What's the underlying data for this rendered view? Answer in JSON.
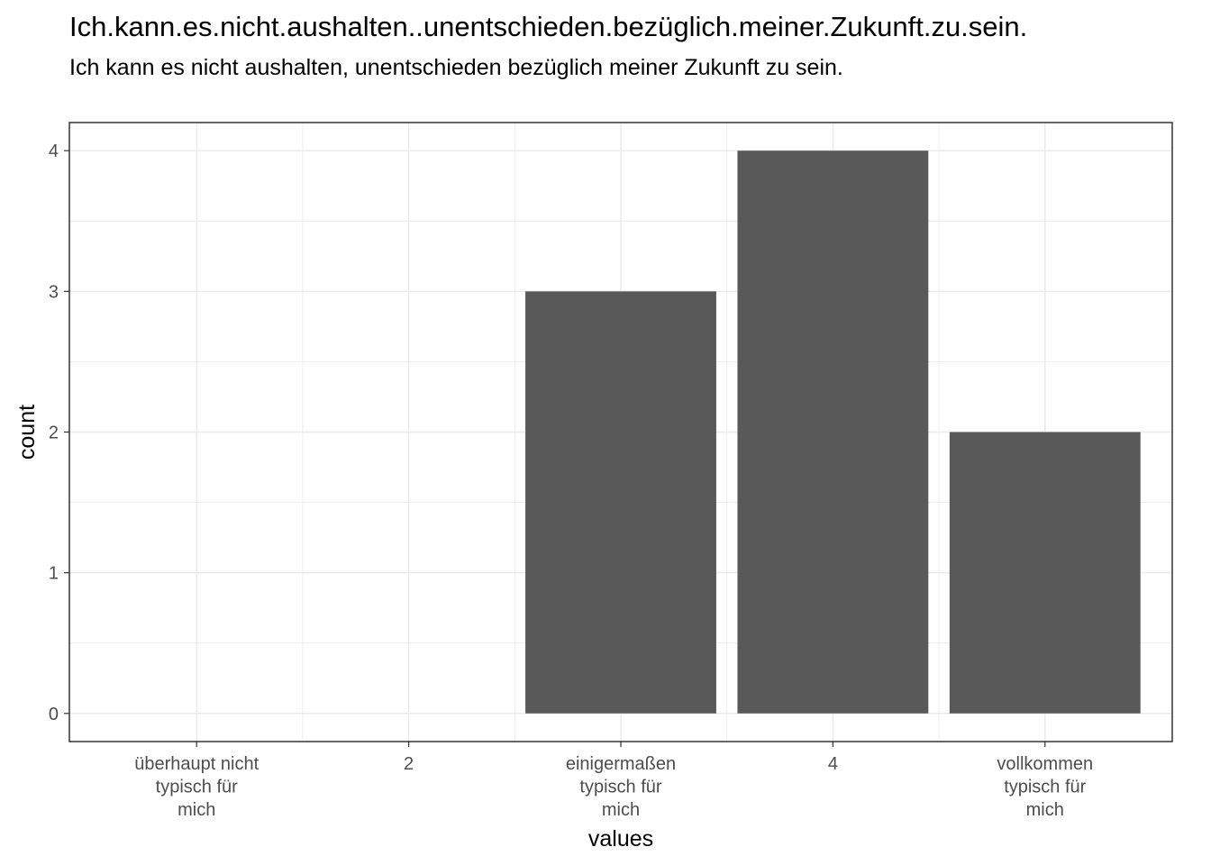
{
  "chart_data": {
    "type": "bar",
    "title": "Ich.kann.es.nicht.aushalten..unentschieden.bezüglich.meiner.Zukunft.zu.sein.",
    "subtitle": "Ich kann es nicht aushalten, unentschieden bezüglich meiner Zukunft zu sein.",
    "xlabel": "values",
    "ylabel": "count",
    "categories": [
      [
        "überhaupt nicht",
        "typisch für",
        "mich"
      ],
      [
        "2"
      ],
      [
        "einigermaßen",
        "typisch für",
        "mich"
      ],
      [
        "4"
      ],
      [
        "vollkommen",
        "typisch für",
        "mich"
      ]
    ],
    "values": [
      0,
      0,
      3,
      4,
      2
    ],
    "ylim": [
      -0.2,
      4.2
    ],
    "yticks": [
      0,
      1,
      2,
      3,
      4
    ],
    "grid": true,
    "bar_color": "#595959",
    "grid_color": "#ebebeb",
    "panel_border_color": "#333333"
  }
}
